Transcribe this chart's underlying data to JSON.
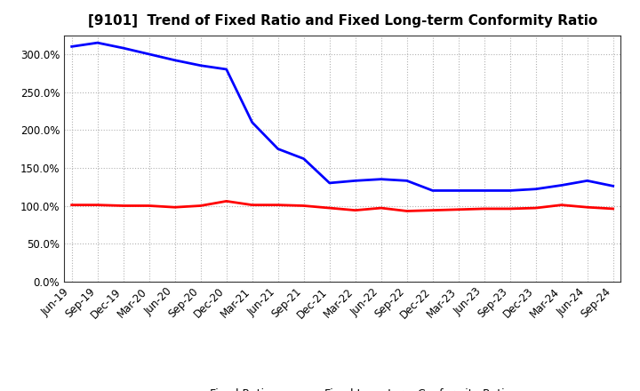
{
  "title": "[9101]  Trend of Fixed Ratio and Fixed Long-term Conformity Ratio",
  "x_labels": [
    "Jun-19",
    "Sep-19",
    "Dec-19",
    "Mar-20",
    "Jun-20",
    "Sep-20",
    "Dec-20",
    "Mar-21",
    "Jun-21",
    "Sep-21",
    "Dec-21",
    "Mar-22",
    "Jun-22",
    "Sep-22",
    "Dec-22",
    "Mar-23",
    "Jun-23",
    "Sep-23",
    "Dec-23",
    "Mar-24",
    "Jun-24",
    "Sep-24"
  ],
  "fixed_ratio": [
    310,
    315,
    308,
    300,
    292,
    285,
    280,
    210,
    175,
    162,
    130,
    133,
    135,
    133,
    120,
    120,
    120,
    120,
    122,
    127,
    133,
    126
  ],
  "fixed_lt_ratio": [
    101,
    101,
    100,
    100,
    98,
    100,
    106,
    101,
    101,
    100,
    97,
    94,
    97,
    93,
    94,
    95,
    96,
    96,
    97,
    101,
    98,
    96
  ],
  "ylim": [
    0,
    325
  ],
  "yticks": [
    0,
    50,
    100,
    150,
    200,
    250,
    300
  ],
  "fixed_ratio_color": "#0000FF",
  "fixed_lt_color": "#FF0000",
  "background_color": "#FFFFFF",
  "grid_color": "#AAAAAA",
  "legend_fixed": "Fixed Ratio",
  "legend_lt": "Fixed Long-term Conformity Ratio",
  "title_fontsize": 11,
  "label_fontsize": 8.5,
  "legend_fontsize": 9
}
